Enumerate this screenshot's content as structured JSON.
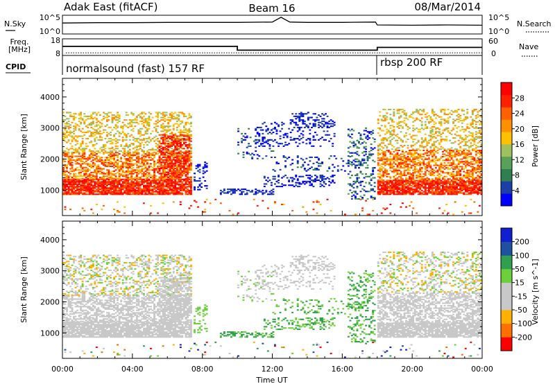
{
  "header": {
    "left_title": "Adak East (fitACF)",
    "center_title": "Beam 16",
    "right_title": "08/Mar/2014"
  },
  "top_panels": {
    "nsky_label": "N.Sky",
    "nsearch_label": "N.Search",
    "noise_ticks": [
      "10^5",
      "10^0"
    ],
    "freq_label_line1": "Freq.",
    "freq_label_line2": "[MHz]",
    "freq_ticks": [
      "18",
      "8"
    ],
    "nave_label": "Nave",
    "nave_ticks": [
      "60",
      "0"
    ],
    "cpid_label": "CPID",
    "cpid_segments": [
      {
        "label": "normalsound (fast) 157 RF",
        "start_hour": 0,
        "end_hour": 18
      },
      {
        "label": "rbsp 200 RF",
        "start_hour": 18,
        "end_hour": 24
      }
    ]
  },
  "power_colorbar": {
    "label": "Power [dB]",
    "ticks": [
      "28",
      "24",
      "20",
      "16",
      "12",
      "8",
      "4"
    ],
    "colors": [
      "#0000ff",
      "#1c3fa5",
      "#2e8050",
      "#59a05a",
      "#a0c060",
      "#ffc000",
      "#ff9000",
      "#ff6000",
      "#ff2000",
      "#ff0000"
    ]
  },
  "velocity_colorbar": {
    "label": "Velocity [m s^-1]",
    "ticks": [
      "200",
      "100",
      "50",
      "15",
      "-15",
      "-50",
      "-100",
      "-200"
    ],
    "colors": [
      "#ff0000",
      "#ff7000",
      "#ffb000",
      "#c8c8c8",
      "#c8c8c8",
      "#6ecf3c",
      "#30a050",
      "#2050a0",
      "#1020d0"
    ]
  },
  "chart_data": [
    {
      "type": "line",
      "name": "noise",
      "series": [
        {
          "name": "N.Sky"
        },
        {
          "name": "N.Search"
        }
      ],
      "x": [
        0,
        2,
        4,
        6,
        8,
        10,
        12,
        12.5,
        13,
        14,
        16,
        17.9,
        18,
        20,
        22,
        24
      ],
      "y_nsky": [
        3.0,
        3.1,
        3.1,
        3.2,
        3.2,
        3.2,
        3.3,
        4.8,
        3.3,
        3.2,
        3.2,
        3.3,
        2.4,
        2.3,
        2.4,
        2.3
      ],
      "xlim": [
        0,
        24
      ],
      "ylim": [
        0,
        5
      ]
    },
    {
      "type": "line",
      "name": "frequency",
      "x": [
        0,
        10,
        10,
        18,
        18,
        24
      ],
      "y": [
        13.5,
        13.5,
        11.0,
        11.0,
        12.8,
        12.8
      ],
      "ylim": [
        8,
        18
      ],
      "nave_level": 2
    },
    {
      "type": "heatmap",
      "name": "power",
      "xlabel": "",
      "ylabel": "Slant Range [km]",
      "x_ticks": [
        "00:00",
        "04:00",
        "08:00",
        "12:00",
        "16:00",
        "20:00",
        "00:00"
      ],
      "y_ticks": [
        "1000",
        "2000",
        "3000",
        "4000"
      ],
      "xlim": [
        0,
        24
      ],
      "ylim": [
        180,
        4600
      ]
    },
    {
      "type": "heatmap",
      "name": "velocity",
      "xlabel": "Time UT",
      "ylabel": "Slant Range [km]",
      "x_ticks": [
        "00:00",
        "04:00",
        "08:00",
        "12:00",
        "16:00",
        "20:00",
        "00:00"
      ],
      "y_ticks": [
        "1000",
        "2000",
        "3000",
        "4000"
      ],
      "xlim": [
        0,
        24
      ],
      "ylim": [
        180,
        4600
      ]
    }
  ]
}
